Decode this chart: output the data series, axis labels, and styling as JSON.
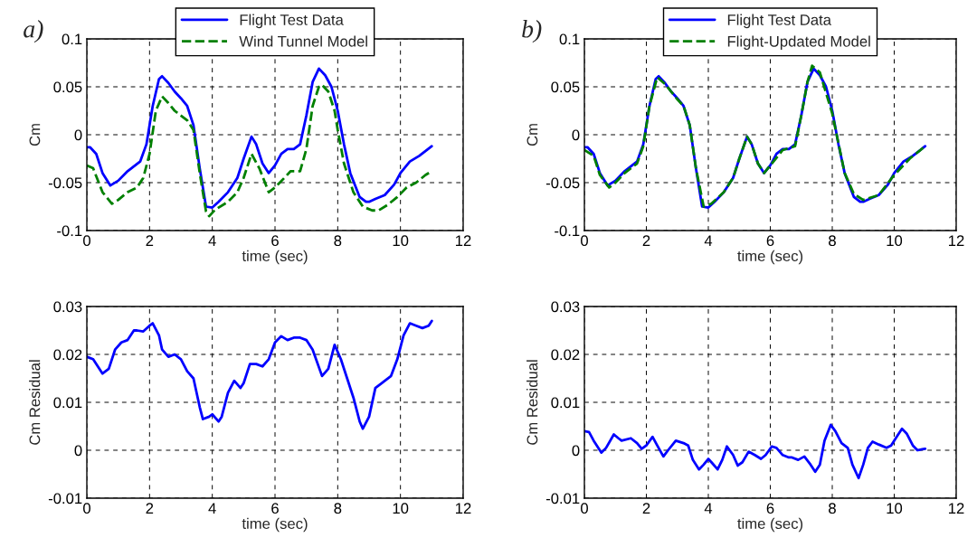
{
  "chart_data": [
    {
      "type": "line",
      "annotations": [
        "a)"
      ],
      "xlabel": "time (sec)",
      "ylabel": "Cm",
      "xlim": [
        0,
        12
      ],
      "xticks": [
        0,
        2,
        4,
        6,
        8,
        10,
        12
      ],
      "ylim": [
        -0.1,
        0.1
      ],
      "yticks": [
        -0.1,
        -0.05,
        0,
        0.05,
        0.1
      ],
      "grid": true,
      "legend": "top",
      "series": [
        {
          "name": "Flight Test Data",
          "color": "#0000ff",
          "line_style": "solid",
          "x": [
            0,
            0.1,
            0.3,
            0.5,
            0.75,
            1.0,
            1.3,
            1.7,
            1.9,
            2.1,
            2.3,
            2.4,
            2.6,
            2.8,
            3.0,
            3.2,
            3.4,
            3.6,
            3.8,
            4.0,
            4.2,
            4.5,
            4.8,
            5.0,
            5.25,
            5.4,
            5.6,
            5.8,
            6.0,
            6.2,
            6.4,
            6.6,
            6.8,
            7.0,
            7.2,
            7.4,
            7.6,
            7.8,
            8.0,
            8.2,
            8.4,
            8.7,
            8.9,
            9.0,
            9.2,
            9.5,
            9.8,
            10.0,
            10.3,
            10.6,
            11.0
          ],
          "values": [
            -0.013,
            -0.013,
            -0.02,
            -0.04,
            -0.053,
            -0.048,
            -0.038,
            -0.028,
            -0.01,
            0.03,
            0.058,
            0.061,
            0.054,
            0.045,
            0.038,
            0.03,
            0.01,
            -0.035,
            -0.075,
            -0.076,
            -0.07,
            -0.06,
            -0.045,
            -0.025,
            -0.002,
            -0.01,
            -0.03,
            -0.04,
            -0.032,
            -0.02,
            -0.015,
            -0.015,
            -0.01,
            0.02,
            0.055,
            0.069,
            0.062,
            0.05,
            0.025,
            -0.01,
            -0.04,
            -0.065,
            -0.07,
            -0.07,
            -0.067,
            -0.063,
            -0.052,
            -0.04,
            -0.028,
            -0.022,
            -0.012
          ]
        },
        {
          "name": "Wind Tunnel Model",
          "color": "#008000",
          "line_style": "dashed",
          "x": [
            0,
            0.2,
            0.5,
            0.8,
            1.0,
            1.3,
            1.6,
            1.8,
            2.0,
            2.2,
            2.4,
            2.6,
            2.8,
            3.0,
            3.2,
            3.4,
            3.6,
            3.8,
            3.9,
            4.1,
            4.5,
            4.8,
            5.0,
            5.25,
            5.5,
            5.8,
            6.0,
            6.3,
            6.5,
            6.8,
            7.0,
            7.2,
            7.4,
            7.5,
            7.7,
            7.9,
            8.0,
            8.2,
            8.5,
            8.8,
            9.1,
            9.3,
            9.6,
            9.9,
            10.2,
            10.5,
            10.8,
            11.0
          ],
          "values": [
            -0.032,
            -0.035,
            -0.06,
            -0.072,
            -0.068,
            -0.06,
            -0.055,
            -0.045,
            -0.02,
            0.025,
            0.04,
            0.033,
            0.025,
            0.02,
            0.015,
            0.005,
            -0.04,
            -0.08,
            -0.085,
            -0.078,
            -0.07,
            -0.06,
            -0.045,
            -0.02,
            -0.035,
            -0.06,
            -0.055,
            -0.045,
            -0.038,
            -0.038,
            -0.015,
            0.03,
            0.05,
            0.052,
            0.045,
            0.025,
            0.005,
            -0.03,
            -0.06,
            -0.075,
            -0.079,
            -0.079,
            -0.073,
            -0.065,
            -0.055,
            -0.05,
            -0.042,
            -0.038
          ]
        }
      ]
    },
    {
      "type": "line",
      "xlabel": "time (sec)",
      "ylabel": "Cm Residual",
      "xlim": [
        0,
        12
      ],
      "xticks": [
        0,
        2,
        4,
        6,
        8,
        10,
        12
      ],
      "ylim": [
        -0.01,
        0.03
      ],
      "yticks": [
        -0.01,
        0,
        0.01,
        0.02,
        0.03
      ],
      "grid": true,
      "series": [
        {
          "color": "#0000ff",
          "line_style": "solid",
          "x": [
            0,
            0.2,
            0.5,
            0.7,
            0.9,
            1.1,
            1.3,
            1.5,
            1.6,
            1.8,
            2.0,
            2.1,
            2.3,
            2.4,
            2.6,
            2.8,
            3.0,
            3.2,
            3.4,
            3.6,
            3.7,
            3.9,
            4.0,
            4.2,
            4.3,
            4.5,
            4.7,
            4.9,
            5.0,
            5.2,
            5.4,
            5.6,
            5.8,
            6.0,
            6.2,
            6.4,
            6.6,
            6.8,
            7.0,
            7.2,
            7.5,
            7.7,
            7.9,
            8.1,
            8.3,
            8.5,
            8.7,
            8.8,
            9.0,
            9.2,
            9.4,
            9.7,
            9.9,
            10.1,
            10.3,
            10.5,
            10.7,
            10.9,
            11.0
          ],
          "values": [
            0.0195,
            0.019,
            0.016,
            0.017,
            0.021,
            0.0225,
            0.023,
            0.025,
            0.025,
            0.0248,
            0.026,
            0.0265,
            0.024,
            0.021,
            0.0195,
            0.02,
            0.019,
            0.0165,
            0.015,
            0.009,
            0.0065,
            0.007,
            0.0075,
            0.006,
            0.007,
            0.012,
            0.0145,
            0.013,
            0.014,
            0.018,
            0.018,
            0.0175,
            0.019,
            0.0225,
            0.0238,
            0.023,
            0.0235,
            0.0235,
            0.023,
            0.021,
            0.0155,
            0.017,
            0.022,
            0.019,
            0.015,
            0.011,
            0.006,
            0.0045,
            0.007,
            0.013,
            0.014,
            0.0155,
            0.019,
            0.024,
            0.0265,
            0.026,
            0.0255,
            0.026,
            0.027
          ]
        }
      ]
    },
    {
      "type": "line",
      "annotations": [
        "b)"
      ],
      "xlabel": "time (sec)",
      "ylabel": "Cm",
      "xlim": [
        0,
        12
      ],
      "xticks": [
        0,
        2,
        4,
        6,
        8,
        10,
        12
      ],
      "ylim": [
        -0.1,
        0.1
      ],
      "yticks": [
        -0.1,
        -0.05,
        0,
        0.05,
        0.1
      ],
      "grid": true,
      "legend": "top",
      "series": [
        {
          "name": "Flight Test Data",
          "color": "#0000ff",
          "line_style": "solid",
          "x": [
            0,
            0.1,
            0.3,
            0.5,
            0.75,
            1.0,
            1.3,
            1.7,
            1.9,
            2.1,
            2.3,
            2.4,
            2.6,
            2.8,
            3.0,
            3.2,
            3.4,
            3.6,
            3.8,
            4.0,
            4.2,
            4.5,
            4.8,
            5.0,
            5.25,
            5.4,
            5.6,
            5.8,
            6.0,
            6.2,
            6.4,
            6.6,
            6.8,
            7.0,
            7.2,
            7.4,
            7.6,
            7.8,
            8.0,
            8.2,
            8.4,
            8.7,
            8.9,
            9.0,
            9.2,
            9.5,
            9.8,
            10.0,
            10.3,
            10.6,
            11.0
          ],
          "values": [
            -0.013,
            -0.013,
            -0.02,
            -0.04,
            -0.053,
            -0.048,
            -0.038,
            -0.028,
            -0.01,
            0.03,
            0.058,
            0.061,
            0.054,
            0.045,
            0.038,
            0.03,
            0.01,
            -0.035,
            -0.075,
            -0.076,
            -0.07,
            -0.06,
            -0.045,
            -0.025,
            -0.002,
            -0.01,
            -0.03,
            -0.04,
            -0.032,
            -0.02,
            -0.015,
            -0.015,
            -0.01,
            0.02,
            0.055,
            0.069,
            0.062,
            0.05,
            0.025,
            -0.01,
            -0.04,
            -0.065,
            -0.07,
            -0.07,
            -0.067,
            -0.063,
            -0.052,
            -0.04,
            -0.028,
            -0.022,
            -0.012
          ]
        },
        {
          "name": "Flight-Updated Model",
          "color": "#008000",
          "line_style": "dashed",
          "x": [
            0,
            0.3,
            0.5,
            0.8,
            1.0,
            1.3,
            1.7,
            1.9,
            2.1,
            2.35,
            2.6,
            3.0,
            3.2,
            3.4,
            3.6,
            3.85,
            4.1,
            4.5,
            4.8,
            5.0,
            5.25,
            5.4,
            5.6,
            5.8,
            6.0,
            6.4,
            6.8,
            7.0,
            7.2,
            7.35,
            7.6,
            8.0,
            8.4,
            8.7,
            9.0,
            9.5,
            10.0,
            10.5,
            11.0
          ],
          "values": [
            -0.016,
            -0.022,
            -0.042,
            -0.055,
            -0.05,
            -0.04,
            -0.03,
            -0.012,
            0.03,
            0.06,
            0.053,
            0.037,
            0.03,
            0.01,
            -0.035,
            -0.075,
            -0.072,
            -0.06,
            -0.045,
            -0.025,
            -0.002,
            -0.01,
            -0.03,
            -0.04,
            -0.032,
            -0.016,
            -0.012,
            0.02,
            0.055,
            0.072,
            0.065,
            0.022,
            -0.04,
            -0.062,
            -0.068,
            -0.063,
            -0.042,
            -0.025,
            -0.012
          ]
        }
      ]
    },
    {
      "type": "line",
      "xlabel": "time (sec)",
      "ylabel": "Cm Residual",
      "xlim": [
        0,
        12
      ],
      "xticks": [
        0,
        2,
        4,
        6,
        8,
        10,
        12
      ],
      "ylim": [
        -0.01,
        0.03
      ],
      "yticks": [
        -0.01,
        0,
        0.01,
        0.02,
        0.03
      ],
      "grid": true,
      "series": [
        {
          "color": "#0000ff",
          "line_style": "solid",
          "x": [
            0,
            0.15,
            0.3,
            0.55,
            0.7,
            0.95,
            1.1,
            1.2,
            1.5,
            1.7,
            1.85,
            2.0,
            2.2,
            2.35,
            2.55,
            2.7,
            2.95,
            3.2,
            3.35,
            3.5,
            3.7,
            3.85,
            4.0,
            4.1,
            4.3,
            4.45,
            4.6,
            4.8,
            4.95,
            5.1,
            5.3,
            5.5,
            5.7,
            5.85,
            6.05,
            6.2,
            6.4,
            6.6,
            6.7,
            6.9,
            7.1,
            7.3,
            7.45,
            7.6,
            7.75,
            7.95,
            8.1,
            8.3,
            8.5,
            8.65,
            8.85,
            9.0,
            9.15,
            9.3,
            9.5,
            9.75,
            9.9,
            10.1,
            10.25,
            10.4,
            10.6,
            10.75,
            10.9,
            11.0
          ],
          "values": [
            0.004,
            0.0038,
            0.002,
            -0.0005,
            0.0005,
            0.0033,
            0.0025,
            0.002,
            0.0025,
            0.0015,
            0.0003,
            0.001,
            0.0028,
            0.001,
            -0.0013,
            0,
            0.002,
            0.0015,
            0.001,
            -0.002,
            -0.004,
            -0.003,
            -0.0018,
            -0.0025,
            -0.004,
            -0.002,
            0.0008,
            -0.001,
            -0.0032,
            -0.0025,
            -0.0003,
            -0.001,
            -0.0018,
            -0.001,
            0.0008,
            0.0005,
            -0.001,
            -0.0015,
            -0.0015,
            -0.002,
            -0.0013,
            -0.003,
            -0.0045,
            -0.003,
            0.002,
            0.0053,
            0.004,
            0.0015,
            0.0005,
            -0.003,
            -0.0058,
            -0.003,
            0.0005,
            0.0018,
            0.0012,
            0.0005,
            0.001,
            0.003,
            0.0045,
            0.0035,
            0.001,
            0,
            0.0002,
            0.0003
          ]
        }
      ]
    }
  ]
}
